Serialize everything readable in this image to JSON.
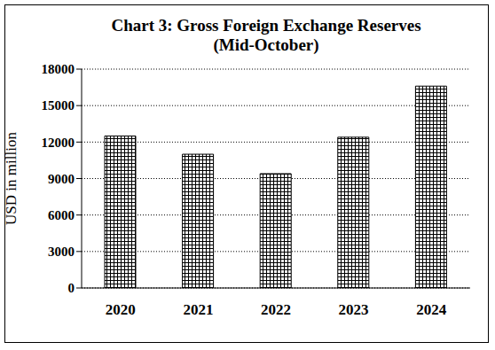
{
  "chart_data": {
    "type": "bar",
    "title": "Chart 3: Gross Foreign Exchange Reserves",
    "subtitle": "(Mid-October)",
    "y_label": "USD in million",
    "categories": [
      "2020",
      "2021",
      "2022",
      "2023",
      "2024"
    ],
    "values": [
      12500,
      11000,
      9400,
      12400,
      16600
    ],
    "color": "#000000",
    "ylim": [
      0,
      18000
    ],
    "yticks": [
      0,
      3000,
      6000,
      9000,
      12000,
      15000,
      18000
    ],
    "grid": true
  }
}
